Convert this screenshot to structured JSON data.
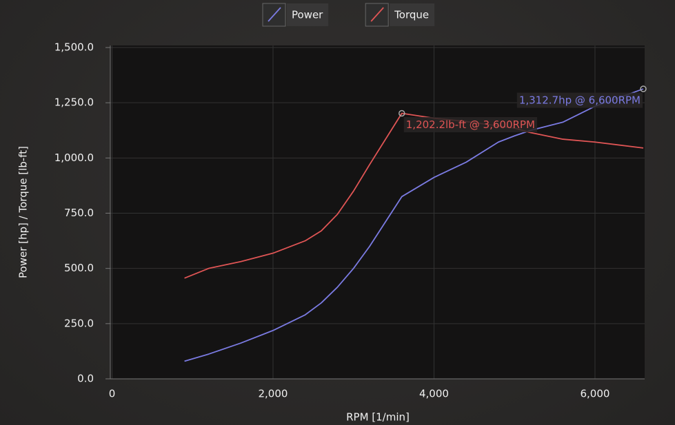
{
  "chart_data": {
    "type": "line",
    "x_label": "RPM [1/min]",
    "y_label": "Power [hp] / Torque [lb-ft]",
    "x": [
      900,
      1200,
      1600,
      2000,
      2400,
      2600,
      2800,
      3000,
      3200,
      3600,
      4000,
      4400,
      4800,
      5000,
      5200,
      5600,
      6000,
      6600
    ],
    "series": [
      {
        "name": "Power",
        "color": "#7b7be3",
        "values": [
          80,
          112,
          162,
          219,
          290,
          344,
          415,
          500,
          600,
          825,
          912,
          981,
          1072,
          1100,
          1125,
          1162,
          1234,
          1312.7
        ]
      },
      {
        "name": "Torque",
        "color": "#e05555",
        "values": [
          456,
          500,
          531,
          569,
          625,
          670,
          745,
          850,
          970,
          1202.2,
          1180,
          1165,
          1145,
          1135,
          1115,
          1085,
          1072,
          1045
        ]
      }
    ],
    "annotations": [
      "1,312.7hp @ 6,600RPM",
      "1,202.2lb-ft @ 3,600RPM"
    ],
    "xlim": [
      0,
      6600
    ],
    "xticks": [
      0,
      {
        "value": 2000,
        "label": "2,000"
      },
      {
        "value": 4000,
        "label": "4,000"
      },
      {
        "value": 6000,
        "label": "6,000"
      }
    ],
    "ylim": [
      0,
      1500
    ],
    "yticks": [
      {
        "value": 0,
        "label": "0.0"
      },
      {
        "value": 250,
        "label": "250.0"
      },
      {
        "value": 500,
        "label": "500.0"
      },
      {
        "value": 750,
        "label": "750.0"
      },
      {
        "value": 1000,
        "label": "1,000.0"
      },
      {
        "value": 1250,
        "label": "1,250.0"
      },
      {
        "value": 1500,
        "label": "1,500.0"
      }
    ],
    "grid": true
  }
}
